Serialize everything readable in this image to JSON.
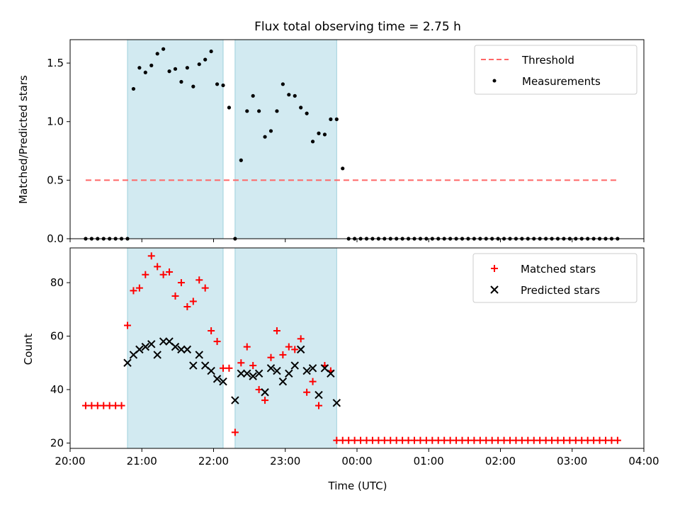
{
  "chart_data": [
    {
      "type": "scatter",
      "title": "Flux total observing time = 2.75 h",
      "xlabel": "",
      "ylabel": "Matched/Predicted stars",
      "xlim": [
        "20:00",
        "04:00"
      ],
      "ylim": [
        0,
        1.7
      ],
      "yticks": [
        "0.0",
        "0.5",
        "1.0",
        "1.5"
      ],
      "legend_position": "top-right",
      "observing_spans": [
        [
          "20:48",
          "22:08"
        ],
        [
          "22:18",
          "23:43"
        ]
      ],
      "span_color": "#add8e6",
      "series": [
        {
          "name": "Threshold",
          "kind": "dashed-line",
          "color": "#ff6666",
          "x": [
            "20:13",
            "23:58"
          ],
          "y": [
            0.5,
            0.5
          ],
          "extend_to": "03:38"
        },
        {
          "name": "Measurements",
          "kind": "dots",
          "color": "#000000",
          "x": [
            "20:13",
            "20:18",
            "20:23",
            "20:28",
            "20:33",
            "20:38",
            "20:43",
            "20:48",
            "20:53",
            "20:58",
            "21:03",
            "21:08",
            "21:13",
            "21:18",
            "21:23",
            "21:28",
            "21:33",
            "21:38",
            "21:43",
            "21:48",
            "21:53",
            "21:58",
            "22:03",
            "22:08",
            "22:13",
            "22:18",
            "22:23",
            "22:28",
            "22:33",
            "22:38",
            "22:43",
            "22:48",
            "22:53",
            "22:58",
            "23:03",
            "23:08",
            "23:13",
            "23:18",
            "23:23",
            "23:28",
            "23:33",
            "23:38",
            "23:43",
            "23:48",
            "23:53",
            "23:58",
            "00:03",
            "00:08",
            "00:13",
            "00:18",
            "00:23",
            "00:28",
            "00:33",
            "00:38",
            "00:43",
            "00:48",
            "00:53",
            "00:58",
            "01:03",
            "01:08",
            "01:13",
            "01:18",
            "01:23",
            "01:28",
            "01:33",
            "01:38",
            "01:43",
            "01:48",
            "01:53",
            "01:58",
            "02:03",
            "02:08",
            "02:13",
            "02:18",
            "02:23",
            "02:28",
            "02:33",
            "02:38",
            "02:43",
            "02:48",
            "02:53",
            "02:58",
            "03:03",
            "03:08",
            "03:13",
            "03:18",
            "03:23",
            "03:28",
            "03:33",
            "03:38"
          ],
          "y": [
            0,
            0,
            0,
            0,
            0,
            0,
            0,
            0,
            1.28,
            1.46,
            1.42,
            1.48,
            1.58,
            1.62,
            1.43,
            1.45,
            1.34,
            1.46,
            1.3,
            1.49,
            1.53,
            1.6,
            1.32,
            1.31,
            1.12,
            0,
            0.67,
            1.09,
            1.22,
            1.09,
            0.87,
            0.92,
            1.09,
            1.32,
            1.23,
            1.22,
            1.12,
            1.07,
            0.83,
            0.9,
            0.89,
            1.02,
            1.02,
            0.6,
            0,
            0,
            0,
            0,
            0,
            0,
            0,
            0,
            0,
            0,
            0,
            0,
            0,
            0,
            0,
            0,
            0,
            0,
            0,
            0,
            0,
            0,
            0,
            0,
            0,
            0,
            0,
            0,
            0,
            0,
            0,
            0,
            0,
            0,
            0,
            0,
            0,
            0,
            0,
            0,
            0,
            0,
            0,
            0,
            0,
            0
          ]
        }
      ]
    },
    {
      "type": "scatter",
      "xlabel": "Time (UTC)",
      "ylabel": "Count",
      "xlim": [
        "20:00",
        "04:00"
      ],
      "ylim": [
        18,
        93
      ],
      "yticks": [
        "20",
        "40",
        "60",
        "80"
      ],
      "xticks": [
        "20:00",
        "21:00",
        "22:00",
        "23:00",
        "00:00",
        "01:00",
        "02:00",
        "03:00",
        "04:00"
      ],
      "legend_position": "top-right",
      "observing_spans": [
        [
          "20:48",
          "22:08"
        ],
        [
          "22:18",
          "23:43"
        ]
      ],
      "span_color": "#add8e6",
      "series": [
        {
          "name": "Matched stars",
          "kind": "plus",
          "color": "#ff0000",
          "x": [
            "20:13",
            "20:18",
            "20:23",
            "20:28",
            "20:33",
            "20:38",
            "20:43",
            "20:48",
            "20:53",
            "20:58",
            "21:03",
            "21:08",
            "21:13",
            "21:18",
            "21:23",
            "21:28",
            "21:33",
            "21:38",
            "21:43",
            "21:48",
            "21:53",
            "21:58",
            "22:03",
            "22:08",
            "22:13",
            "22:18",
            "22:23",
            "22:28",
            "22:33",
            "22:38",
            "22:43",
            "22:48",
            "22:53",
            "22:58",
            "23:03",
            "23:08",
            "23:13",
            "23:18",
            "23:23",
            "23:28",
            "23:33",
            "23:38",
            "23:43",
            "23:48",
            "23:53",
            "23:58",
            "00:03",
            "00:08",
            "00:13",
            "00:18",
            "00:23",
            "00:28",
            "00:33",
            "00:38",
            "00:43",
            "00:48",
            "00:53",
            "00:58",
            "01:03",
            "01:08",
            "01:13",
            "01:18",
            "01:23",
            "01:28",
            "01:33",
            "01:38",
            "01:43",
            "01:48",
            "01:53",
            "01:58",
            "02:03",
            "02:08",
            "02:13",
            "02:18",
            "02:23",
            "02:28",
            "02:33",
            "02:38",
            "02:43",
            "02:48",
            "02:53",
            "02:58",
            "03:03",
            "03:08",
            "03:13",
            "03:18",
            "03:23",
            "03:28",
            "03:33",
            "03:38"
          ],
          "y": [
            34,
            34,
            34,
            34,
            34,
            34,
            34,
            64,
            77,
            78,
            83,
            90,
            86,
            83,
            84,
            75,
            80,
            71,
            73,
            81,
            78,
            62,
            58,
            48,
            48,
            24,
            50,
            56,
            49,
            40,
            36,
            52,
            62,
            53,
            56,
            55,
            59,
            39,
            43,
            34,
            49,
            47,
            21,
            21,
            21,
            21,
            21,
            21,
            21,
            21,
            21,
            21,
            21,
            21,
            21,
            21,
            21,
            21,
            21,
            21,
            21,
            21,
            21,
            21,
            21,
            21,
            21,
            21,
            21,
            21,
            21,
            21,
            21,
            21,
            21,
            21,
            21,
            21,
            21,
            21,
            21,
            21,
            21,
            21,
            21,
            21,
            21,
            21,
            21,
            21
          ]
        },
        {
          "name": "Predicted stars",
          "kind": "x",
          "color": "#000000",
          "x": [
            "20:48",
            "20:53",
            "20:58",
            "21:03",
            "21:08",
            "21:13",
            "21:18",
            "21:23",
            "21:28",
            "21:33",
            "21:38",
            "21:43",
            "21:48",
            "21:53",
            "21:58",
            "22:03",
            "22:08",
            "22:18",
            "22:23",
            "22:28",
            "22:33",
            "22:38",
            "22:43",
            "22:48",
            "22:53",
            "22:58",
            "23:03",
            "23:08",
            "23:13",
            "23:18",
            "23:23",
            "23:28",
            "23:33",
            "23:38",
            "23:43"
          ],
          "y": [
            50,
            53,
            55,
            56,
            57,
            53,
            58,
            58,
            56,
            55,
            55,
            49,
            53,
            49,
            47,
            44,
            43,
            36,
            46,
            46,
            45,
            46,
            39,
            48,
            47,
            43,
            46,
            49,
            55,
            47,
            48,
            38,
            48,
            46,
            35
          ]
        }
      ]
    }
  ]
}
